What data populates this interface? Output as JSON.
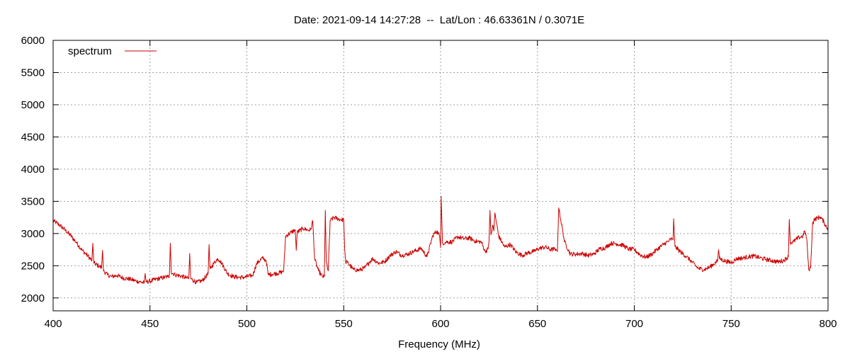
{
  "chart_data": {
    "type": "line",
    "title": "Date: 2021-09-14 14:27:28  --  Lat/Lon : 46.63361N / 0.3071E",
    "xlabel": "Frequency (MHz)",
    "ylabel": "",
    "xlim": [
      400,
      800
    ],
    "ylim": [
      1800,
      6000
    ],
    "xticks": [
      400,
      450,
      500,
      550,
      600,
      650,
      700,
      750,
      800
    ],
    "yticks": [
      2000,
      2500,
      3000,
      3500,
      4000,
      4500,
      5000,
      5500,
      6000
    ],
    "grid": true,
    "legend": {
      "position": "top-left"
    },
    "series": [
      {
        "name": "spectrum",
        "color": "#cc0000",
        "x": [
          400,
          403,
          406,
          409,
          412,
          415,
          418,
          420,
          420.5,
          421,
          424,
          425,
          425.5,
          426,
          428,
          430,
          433,
          436,
          440,
          443,
          445,
          447,
          447.5,
          448,
          450,
          453,
          456,
          459,
          460,
          460.5,
          461,
          463,
          466,
          469,
          470,
          470.5,
          471,
          474,
          477,
          480,
          480.5,
          481,
          483,
          485,
          486,
          487,
          490,
          493,
          496,
          499,
          500,
          503,
          505,
          508,
          509,
          510,
          511,
          513,
          515,
          518,
          519,
          520,
          523,
          525,
          525.5,
          526,
          529,
          532,
          533,
          534,
          535,
          537,
          539,
          540,
          540.5,
          541,
          542,
          543,
          545,
          548,
          550,
          550.5,
          551,
          552,
          555,
          558,
          561,
          563,
          565,
          568,
          571,
          574,
          577,
          580,
          583,
          586,
          590,
          593,
          596,
          598,
          599.5,
          600,
          600.3,
          601,
          603,
          606,
          609,
          612,
          615,
          618,
          621,
          623,
          624.5,
          625,
          625.5,
          626,
          627,
          627.5,
          628,
          630,
          633,
          636,
          639,
          642,
          645,
          648,
          651,
          654,
          657,
          659.5,
          660,
          660.3,
          661,
          664,
          667,
          670,
          673,
          676,
          679,
          682,
          685,
          688,
          691,
          694,
          697,
          700,
          703,
          706,
          709,
          712,
          715,
          718,
          719.5,
          720,
          720.3,
          721,
          724,
          727,
          730,
          733,
          736,
          739,
          742,
          743,
          743.5,
          744,
          747,
          750,
          753,
          756,
          759,
          762,
          765,
          768,
          771,
          774,
          777,
          779.5,
          780,
          780.5,
          782,
          785,
          787,
          788,
          789,
          790,
          791,
          792,
          793,
          796,
          798,
          800
        ],
        "y": [
          3200,
          3140,
          3060,
          2970,
          2860,
          2740,
          2650,
          2580,
          2850,
          2540,
          2490,
          2470,
          2740,
          2420,
          2360,
          2330,
          2350,
          2310,
          2290,
          2260,
          2250,
          2230,
          2380,
          2250,
          2260,
          2290,
          2310,
          2330,
          2340,
          2850,
          2400,
          2360,
          2340,
          2310,
          2300,
          2690,
          2300,
          2240,
          2270,
          2370,
          2830,
          2450,
          2540,
          2610,
          2580,
          2540,
          2380,
          2330,
          2320,
          2320,
          2330,
          2350,
          2530,
          2620,
          2600,
          2580,
          2360,
          2370,
          2380,
          2400,
          2420,
          2960,
          3020,
          3060,
          2740,
          3020,
          3080,
          3050,
          3060,
          3200,
          2600,
          2420,
          2330,
          2330,
          3360,
          2560,
          2420,
          3200,
          3250,
          3220,
          3210,
          2760,
          2560,
          2550,
          2440,
          2430,
          2470,
          2550,
          2610,
          2540,
          2560,
          2660,
          2720,
          2660,
          2680,
          2720,
          2770,
          2640,
          2970,
          3040,
          2960,
          2780,
          3580,
          2850,
          2870,
          2870,
          2950,
          2920,
          2930,
          2880,
          2870,
          2720,
          2760,
          2880,
          3360,
          2980,
          3130,
          3040,
          3320,
          2960,
          2790,
          2830,
          2710,
          2660,
          2700,
          2720,
          2770,
          2790,
          2750,
          2760,
          2740,
          2720,
          3400,
          2870,
          2680,
          2680,
          2690,
          2660,
          2680,
          2760,
          2780,
          2850,
          2840,
          2820,
          2760,
          2750,
          2670,
          2630,
          2680,
          2760,
          2830,
          2890,
          2920,
          2900,
          3230,
          2800,
          2710,
          2640,
          2550,
          2460,
          2440,
          2480,
          2550,
          2580,
          2750,
          2610,
          2570,
          2550,
          2610,
          2620,
          2640,
          2650,
          2620,
          2600,
          2580,
          2560,
          2580,
          2640,
          3220,
          2860,
          2870,
          2940,
          2960,
          3040,
          2920,
          2440,
          2470,
          3150,
          3220,
          3260,
          3170,
          3060
        ]
      }
    ]
  }
}
